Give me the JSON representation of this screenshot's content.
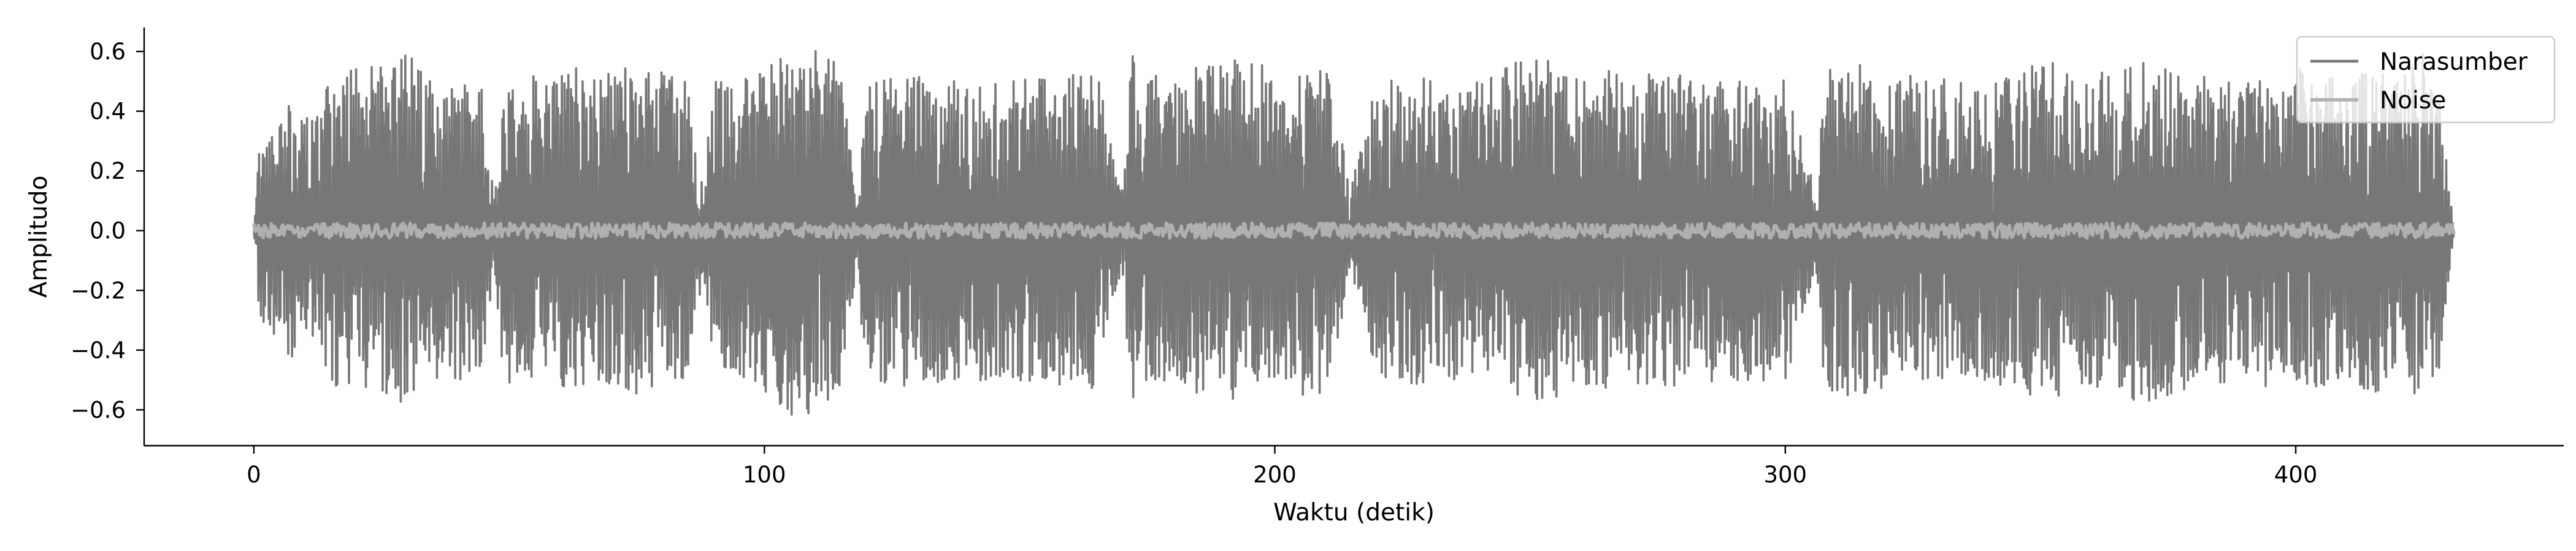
{
  "chart_data": {
    "type": "line",
    "title": "",
    "xlabel": "Waktu (detik)",
    "ylabel": "Amplitudo",
    "xlim": [
      -21.5,
      452.5
    ],
    "ylim": [
      -0.72,
      0.68
    ],
    "x_ticks": [
      0,
      100,
      200,
      300,
      400
    ],
    "y_ticks": [
      -0.6,
      -0.4,
      -0.2,
      0.0,
      0.2,
      0.4,
      0.6
    ],
    "x_tick_labels": [
      "0",
      "100",
      "200",
      "300",
      "400"
    ],
    "y_tick_labels": [
      "−0.6",
      "−0.4",
      "−0.2",
      "0.0",
      "0.2",
      "0.4",
      "0.6"
    ],
    "grid": false,
    "legend_position": "top-right",
    "series": [
      {
        "name": "Narasumber",
        "color": "#777777",
        "x_range": [
          0,
          431
        ],
        "envelope": [
          [
            0,
            0.0
          ],
          [
            1,
            0.3
          ],
          [
            4,
            0.35
          ],
          [
            8,
            0.45
          ],
          [
            12,
            0.38
          ],
          [
            15,
            0.52
          ],
          [
            20,
            0.55
          ],
          [
            25,
            0.55
          ],
          [
            30,
            0.6
          ],
          [
            35,
            0.5
          ],
          [
            40,
            0.5
          ],
          [
            45,
            0.52
          ],
          [
            47,
            0.1
          ],
          [
            49,
            0.52
          ],
          [
            55,
            0.52
          ],
          [
            60,
            0.5
          ],
          [
            62,
            0.62
          ],
          [
            66,
            0.5
          ],
          [
            70,
            0.55
          ],
          [
            75,
            0.55
          ],
          [
            80,
            0.53
          ],
          [
            85,
            0.5
          ],
          [
            88,
            0.15
          ],
          [
            90,
            0.5
          ],
          [
            95,
            0.5
          ],
          [
            100,
            0.55
          ],
          [
            105,
            0.62
          ],
          [
            110,
            0.62
          ],
          [
            115,
            0.55
          ],
          [
            118,
            0.12
          ],
          [
            120,
            0.52
          ],
          [
            130,
            0.52
          ],
          [
            140,
            0.5
          ],
          [
            150,
            0.52
          ],
          [
            160,
            0.52
          ],
          [
            165,
            0.55
          ],
          [
            170,
            0.12
          ],
          [
            172,
            0.6
          ],
          [
            180,
            0.52
          ],
          [
            190,
            0.58
          ],
          [
            200,
            0.55
          ],
          [
            210,
            0.55
          ],
          [
            215,
            0.15
          ],
          [
            220,
            0.5
          ],
          [
            230,
            0.52
          ],
          [
            240,
            0.5
          ],
          [
            250,
            0.6
          ],
          [
            260,
            0.52
          ],
          [
            270,
            0.55
          ],
          [
            280,
            0.52
          ],
          [
            290,
            0.5
          ],
          [
            300,
            0.52
          ],
          [
            306,
            0.12
          ],
          [
            308,
            0.6
          ],
          [
            320,
            0.52
          ],
          [
            330,
            0.52
          ],
          [
            340,
            0.5
          ],
          [
            350,
            0.58
          ],
          [
            360,
            0.52
          ],
          [
            370,
            0.58
          ],
          [
            380,
            0.52
          ],
          [
            390,
            0.5
          ],
          [
            400,
            0.55
          ],
          [
            410,
            0.5
          ],
          [
            415,
            0.55
          ],
          [
            420,
            0.5
          ],
          [
            425,
            0.6
          ],
          [
            428,
            0.5
          ],
          [
            431,
            0.0
          ]
        ]
      },
      {
        "name": "Noise",
        "color": "#b0b0b0",
        "x_range": [
          0,
          431
        ],
        "envelope": [
          [
            0,
            0.025
          ],
          [
            431,
            0.025
          ]
        ]
      }
    ]
  }
}
